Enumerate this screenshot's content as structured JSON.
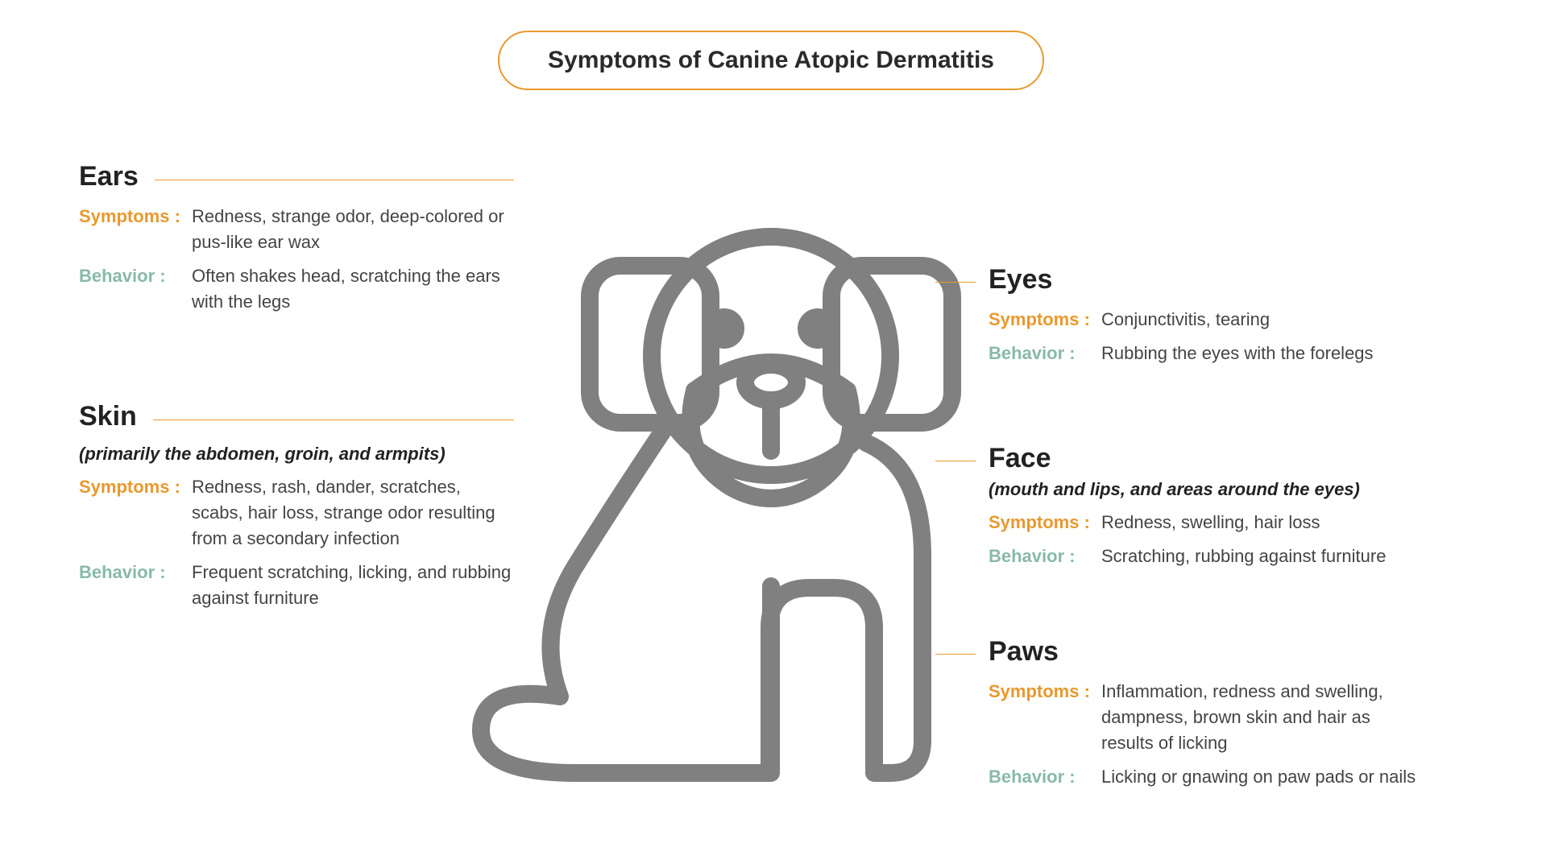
{
  "colors": {
    "title_border": "#e8992e",
    "title_text": "#2a2a2a",
    "body_text": "#2c2c2c",
    "section_text": "#222222",
    "underline": "#e8992e",
    "symptoms_label": "#e8992e",
    "behavior_label": "#88b9a9",
    "value_text": "#444444",
    "dog_stroke": "#808080"
  },
  "title": "Symptoms of Canine Atopic Dermatitis",
  "labels": {
    "symptoms": "Symptoms :",
    "behavior": "Behavior :"
  },
  "sections": {
    "ears": {
      "title": "Ears",
      "subtitle": "",
      "symptoms": "Redness, strange odor, deep-colored or pus-like ear wax",
      "behavior": "Often shakes head, scratching the ears with the legs",
      "tick_top": 14
    },
    "skin": {
      "title": "Skin",
      "subtitle": "(primarily the abdomen, groin, and armpits)",
      "symptoms": "Redness, rash, dander, scratches, scabs, hair loss, strange odor resulting from a secondary infection",
      "behavior": "Frequent scratching, licking, and rubbing against furniture",
      "tick_top": 14
    },
    "eyes": {
      "title": "Eyes",
      "subtitle": "",
      "symptoms": "Conjunctivitis, tearing",
      "behavior": "Rubbing the eyes with the forelegs",
      "tick_top": 22
    },
    "face": {
      "title": "Face",
      "subtitle": "(mouth and lips, and areas around the eyes)",
      "symptoms": "Redness, swelling, hair loss",
      "behavior": "Scratching, rubbing against furniture",
      "tick_top": 22
    },
    "paws": {
      "title": "Paws",
      "subtitle": "",
      "symptoms": "Inflammation, redness and swelling, dampness, brown skin and hair as results of licking",
      "behavior": "Licking or gnawing on paw pads or nails",
      "tick_top": 22
    }
  },
  "dog": {
    "stroke_width": 22
  }
}
